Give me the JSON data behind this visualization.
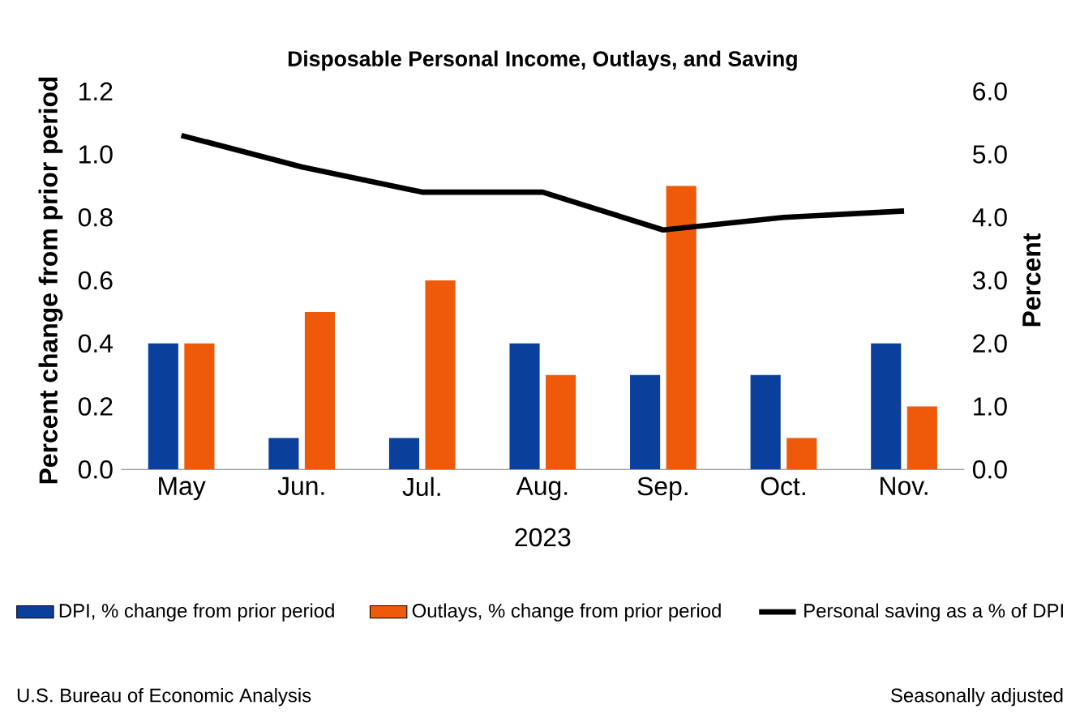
{
  "chart_data": {
    "type": "bar",
    "title": "Disposable Personal Income, Outlays, and Saving",
    "categories": [
      "May",
      "Jun.",
      "Jul.",
      "Aug.",
      "Sep.",
      "Oct.",
      "Nov."
    ],
    "xlabel": "2023",
    "ylabel": "Percent change from prior period",
    "y2label": "Percent",
    "series": [
      {
        "name": "DPI, % change from prior period",
        "color": "#0b3f9c",
        "values": [
          0.4,
          0.1,
          0.1,
          0.4,
          0.3,
          0.3,
          0.4
        ]
      },
      {
        "name": "Outlays, % change from prior period",
        "color": "#ee5a0a",
        "values": [
          0.4,
          0.5,
          0.6,
          0.3,
          0.9,
          0.1,
          0.2
        ]
      },
      {
        "name": "Personal saving as a % of DPI",
        "color": "#000000",
        "type": "line",
        "axis": "y2",
        "values": [
          5.3,
          4.8,
          4.4,
          4.4,
          3.8,
          4.0,
          4.1
        ]
      }
    ],
    "ylim": [
      0,
      1.2
    ],
    "yticks": [
      {
        "value": 0,
        "label": "0.0"
      },
      0.2,
      0.4,
      0.6,
      0.8,
      {
        "value": 1,
        "label": "1.0"
      },
      1.2
    ],
    "y2lim": [
      0,
      6
    ],
    "y2ticks": [
      {
        "value": 0,
        "label": "0.0"
      },
      {
        "value": 1,
        "label": "1.0"
      },
      {
        "value": 2,
        "label": "2.0"
      },
      {
        "value": 3,
        "label": "3.0"
      },
      {
        "value": 4,
        "label": "4.0"
      },
      {
        "value": 5,
        "label": "5.0"
      },
      {
        "value": 6,
        "label": "6.0"
      }
    ],
    "legend": "bottom",
    "marker": "none",
    "annotations": [
      "U.S. Bureau of Economic Analysis",
      "Seasonally adjusted"
    ]
  }
}
